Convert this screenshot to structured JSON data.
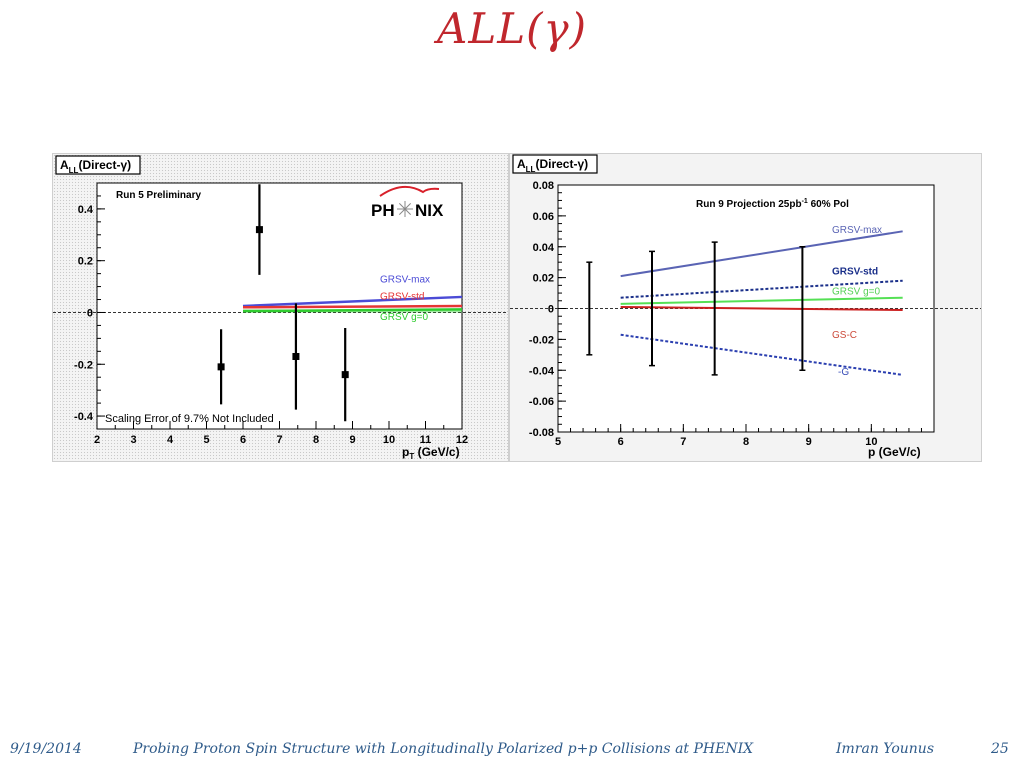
{
  "slide": {
    "title": "ALL(γ)",
    "footer": {
      "date": "9/19/2014",
      "talk_title": "Probing Proton Spin Structure with Longitudinally Polarized p+p Collisions at PHENIX",
      "author": "Imran Younus",
      "page": "25"
    }
  },
  "chart_data": [
    {
      "type": "scatter",
      "title": "ALL(Direct-γ)",
      "xlabel": "pT (GeV/c)",
      "ylabel": "",
      "xlim": [
        2,
        12
      ],
      "ylim": [
        -0.45,
        0.5
      ],
      "x_ticks": [
        2,
        3,
        4,
        5,
        6,
        7,
        8,
        9,
        10,
        11,
        12
      ],
      "y_ticks": [
        -0.4,
        -0.2,
        0,
        0.2,
        0.4
      ],
      "y_tick_labels": [
        "-0.4",
        "-0.2",
        "0",
        "0.2",
        "0.4"
      ],
      "annotations": {
        "run_label": "Run 5 Preliminary",
        "logo": "PHENIX",
        "scaling_note": "Scaling Error of 9.7% Not Included"
      },
      "data_points": {
        "x": [
          5.4,
          6.45,
          7.45,
          8.8
        ],
        "y": [
          -0.21,
          0.32,
          -0.17,
          -0.24
        ],
        "err": [
          0.145,
          0.175,
          0.205,
          0.18
        ]
      },
      "series": [
        {
          "name": "GRSV-max",
          "color": "#4b4bd6",
          "x": [
            6,
            12
          ],
          "y": [
            0.025,
            0.06
          ]
        },
        {
          "name": "GRSV-std",
          "color": "#e53535",
          "x": [
            6,
            12
          ],
          "y": [
            0.02,
            0.025
          ]
        },
        {
          "name": "GRSV g=0",
          "color": "#30cc30",
          "x": [
            6,
            12
          ],
          "y": [
            0.005,
            0.012
          ]
        }
      ],
      "grid": false
    },
    {
      "type": "line",
      "title": "ALL(Direct-γ)",
      "xlabel": "p   (GeV/c)",
      "ylabel": "",
      "xlim": [
        5,
        11
      ],
      "ylim": [
        -0.08,
        0.08
      ],
      "x_ticks": [
        5,
        6,
        7,
        8,
        9,
        10
      ],
      "y_ticks": [
        -0.08,
        -0.06,
        -0.04,
        -0.02,
        0,
        0.02,
        0.04,
        0.06,
        0.08
      ],
      "y_tick_labels": [
        "-0.08",
        "-0.06",
        "-0.04",
        "-0.02",
        "0",
        "0.02",
        "0.04",
        "0.06",
        "0.08"
      ],
      "annotations": {
        "projection_label": "Run 9 Projection 25pb",
        "projection_sup": "-1",
        "projection_tail": " 60% Pol"
      },
      "data_points": {
        "x": [
          5.5,
          6.5,
          7.5,
          8.9
        ],
        "y": [
          0,
          0,
          0,
          0
        ],
        "err": [
          0.03,
          0.037,
          0.043,
          0.04
        ]
      },
      "series": [
        {
          "name": "GRSV-max",
          "color": "#5a64b4",
          "dash": false,
          "x": [
            6,
            10.5
          ],
          "y": [
            0.021,
            0.05
          ]
        },
        {
          "name": "GRSV-std",
          "color": "#1a2f8a",
          "dash": true,
          "x": [
            6,
            10.5
          ],
          "y": [
            0.007,
            0.018
          ]
        },
        {
          "name": "GRSV g=0",
          "color": "#55e055",
          "dash": false,
          "x": [
            6,
            10.5
          ],
          "y": [
            0.003,
            0.007
          ]
        },
        {
          "name": "GS-C",
          "color": "#cc2020",
          "dash": false,
          "x": [
            6,
            10.5
          ],
          "y": [
            0.001,
            -0.001
          ]
        },
        {
          "name": "-G",
          "color": "#2b3fb0",
          "dash": true,
          "x": [
            6,
            10.5
          ],
          "y": [
            -0.017,
            -0.043
          ]
        }
      ],
      "label_colors": {
        "GRSV-max": "#5a64b4",
        "GRSV-std": "#1a2f8a",
        "GRSV g=0": "#55d055",
        "GS-C": "#cc4a3a",
        "-G": "#3a4fb8"
      },
      "grid": false
    }
  ]
}
